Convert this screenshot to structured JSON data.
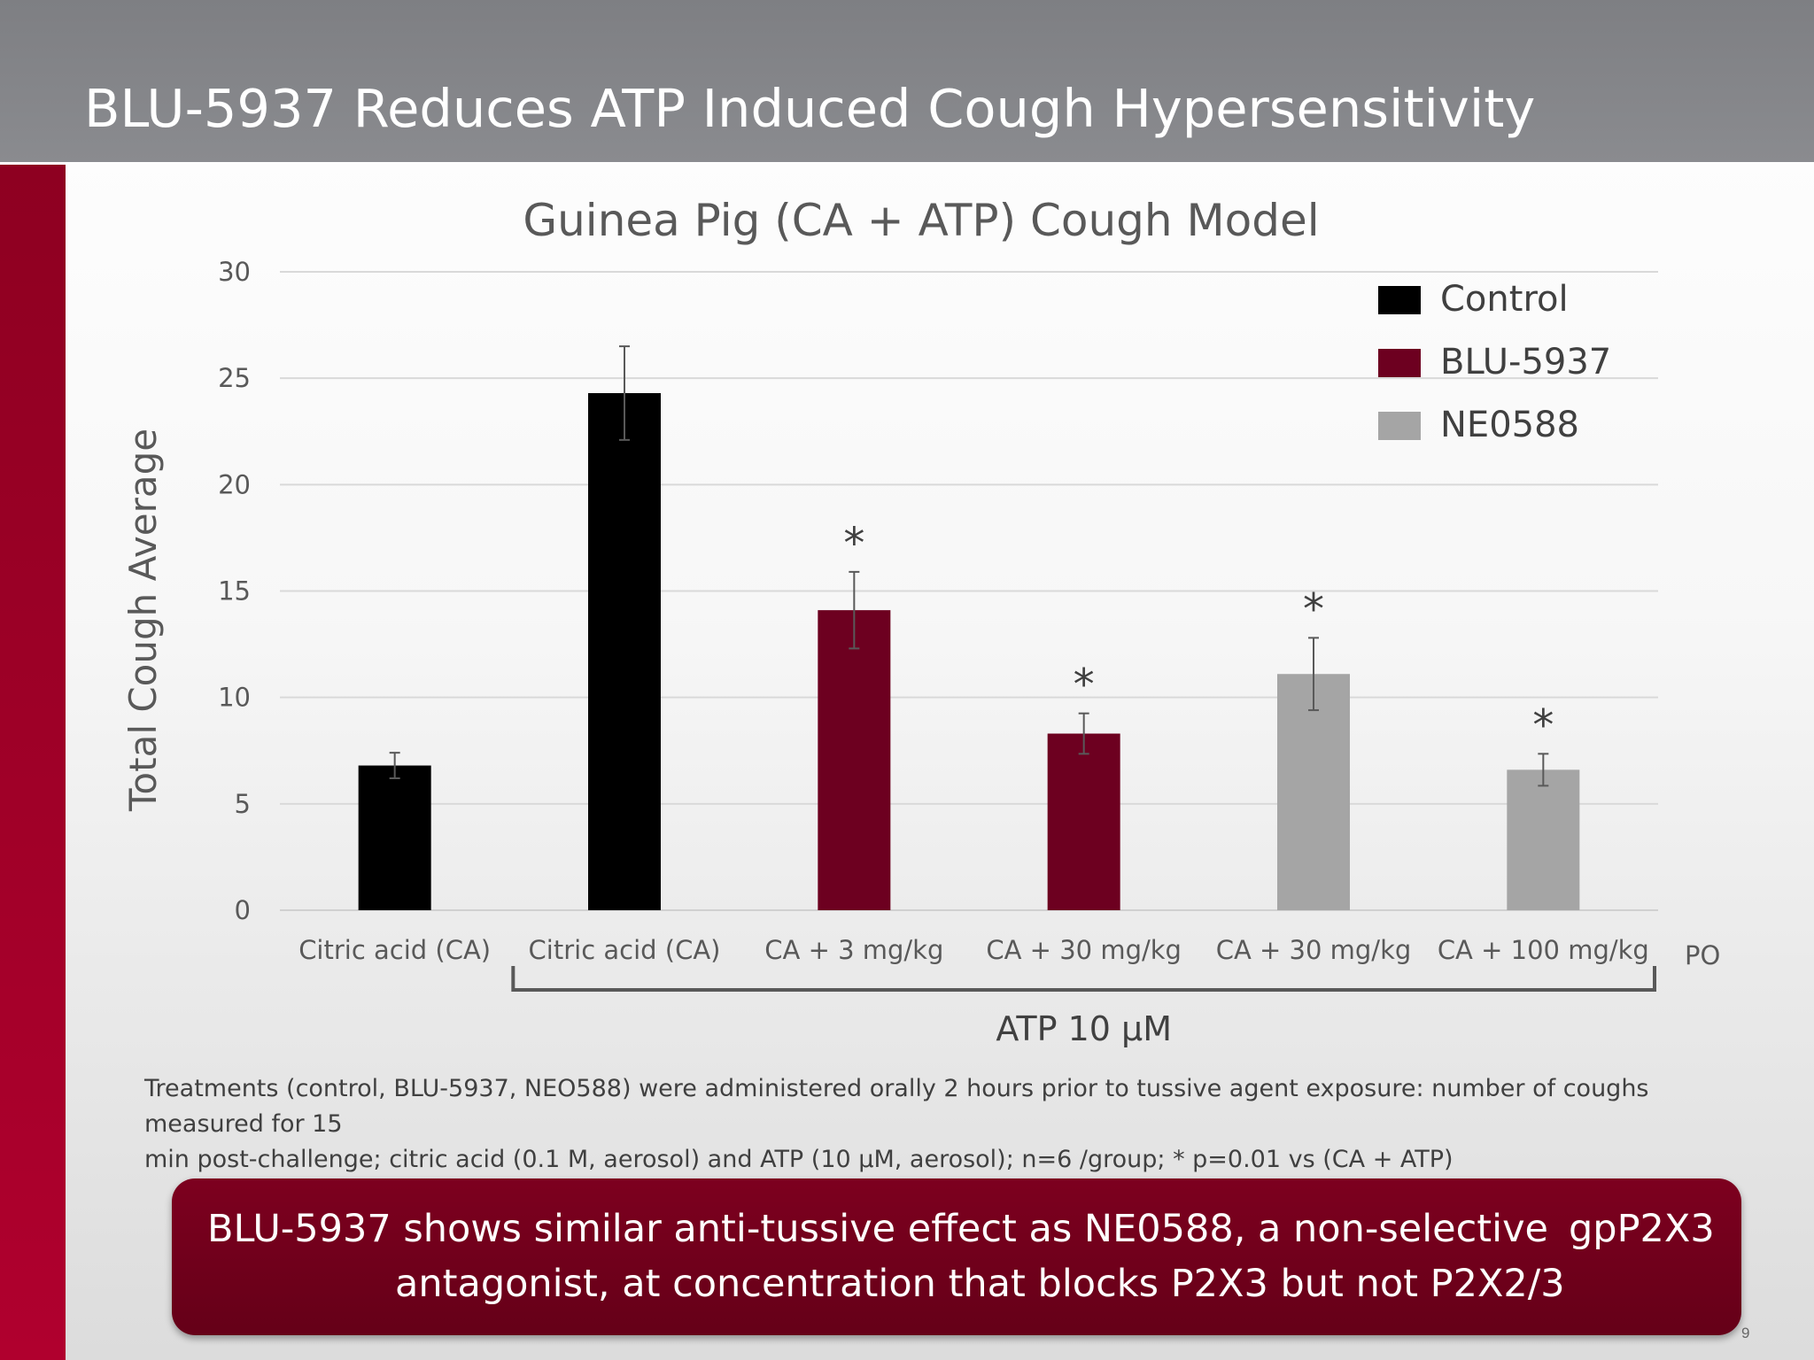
{
  "slide": {
    "title": "BLU-5937 Reduces ATP Induced Cough Hypersensitivity",
    "footnote_line1": "Treatments (control, BLU-5937, NEO588) were administered orally  2 hours prior to tussive agent exposure:  number of coughs measured for 15",
    "footnote_line2": "min post-challenge; citric acid (0.1 M, aerosol) and ATP (10 µM, aerosol);  n=6 /group;  * p=0.01 vs (CA + ATP)",
    "callout_line1a": "BLU-5937 shows similar anti-tussive effect as NE0588, a non-selective",
    "callout_line1b": "gpP2X3",
    "callout_line2": "antagonist, at concentration that blocks P2X3 but not P2X2/3",
    "page_number": "9"
  },
  "chart_data": {
    "type": "bar",
    "title": "Guinea Pig (CA + ATP) Cough Model",
    "xlabel": "",
    "ylabel": "Total Cough Average",
    "ylim": [
      0,
      30
    ],
    "yticks": [
      0,
      5,
      10,
      15,
      20,
      25,
      30
    ],
    "grid": true,
    "legend_position": "top-right",
    "categories": [
      "Citric acid (CA)",
      "Citric acid (CA)",
      "CA + 3 mg/kg",
      "CA + 30 mg/kg",
      "CA + 30 mg/kg",
      "CA + 100 mg/kg"
    ],
    "values": [
      6.8,
      24.3,
      14.1,
      8.3,
      11.1,
      6.6
    ],
    "error": [
      0.6,
      2.2,
      1.8,
      0.95,
      1.7,
      0.75
    ],
    "groups": [
      "Control",
      "Control",
      "BLU-5937",
      "BLU-5937",
      "NE0588",
      "NE0588"
    ],
    "significant": [
      false,
      false,
      true,
      true,
      true,
      true
    ],
    "significance_marker": "*",
    "legend": [
      {
        "name": "Control",
        "color": "#000000"
      },
      {
        "name": "BLU-5937",
        "color": "#6d0020"
      },
      {
        "name": "NE0588",
        "color": "#a5a5a5"
      }
    ],
    "bracket_label": "ATP 10 µM",
    "route_label": "PO"
  }
}
